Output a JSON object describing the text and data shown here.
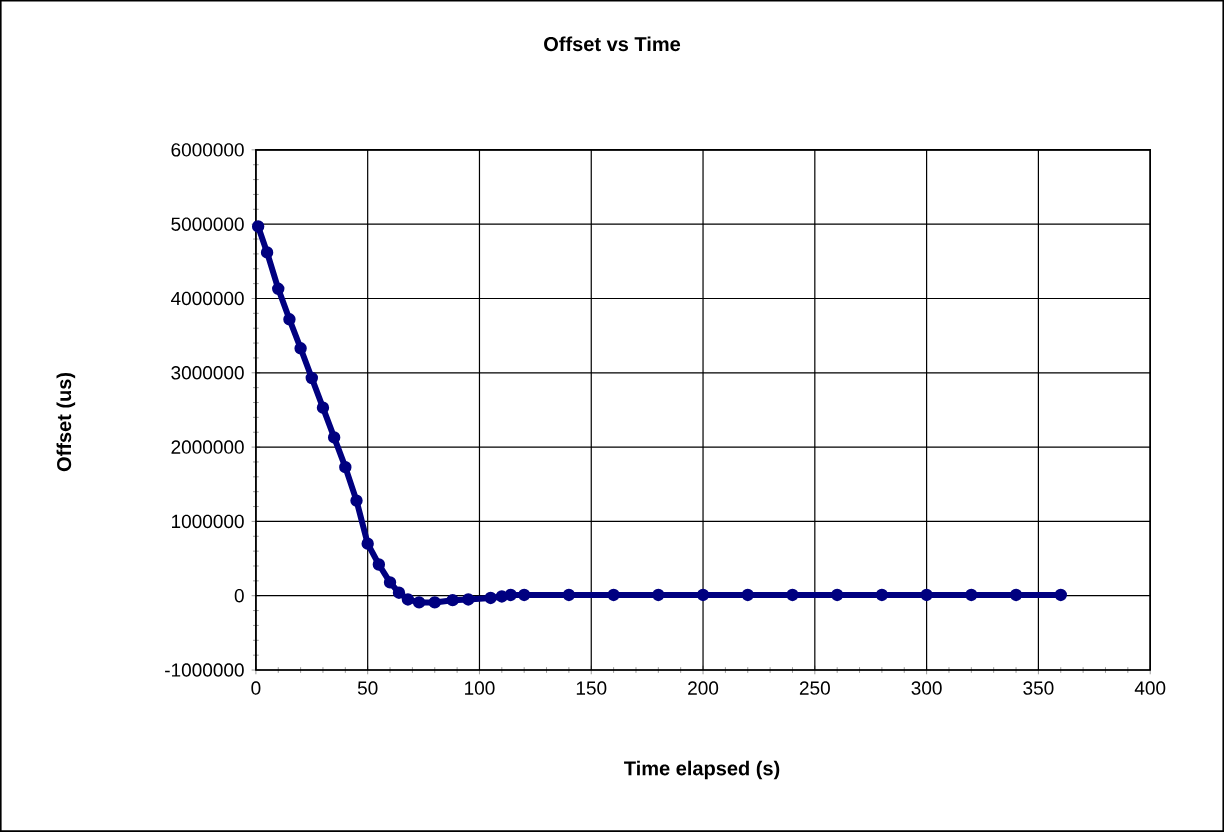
{
  "chart_data": {
    "type": "line",
    "title": "Offset vs Time",
    "xlabel": "Time elapsed (s)",
    "ylabel": "Offset (us)",
    "xlim": [
      0,
      400
    ],
    "xticks": [
      0,
      50,
      100,
      150,
      200,
      250,
      300,
      350,
      400
    ],
    "ylim": [
      -1000000,
      6000000
    ],
    "yticks": [
      -1000000,
      0,
      1000000,
      2000000,
      3000000,
      4000000,
      5000000,
      6000000
    ],
    "grid": true,
    "marker": "circle",
    "series": [
      {
        "color": "#000080",
        "x": [
          1,
          5,
          10,
          15,
          20,
          25,
          30,
          35,
          40,
          45,
          50,
          55,
          60,
          64,
          68,
          73,
          80,
          88,
          95,
          105,
          110,
          114,
          120,
          140,
          160,
          180,
          200,
          220,
          240,
          260,
          280,
          300,
          320,
          340,
          360
        ],
        "values": [
          4970000,
          4620000,
          4130000,
          3720000,
          3330000,
          2930000,
          2530000,
          2130000,
          1730000,
          1280000,
          700000,
          420000,
          180000,
          40000,
          -50000,
          -90000,
          -90000,
          -60000,
          -50000,
          -30000,
          -10000,
          10000,
          10000,
          10000,
          10000,
          10000,
          10000,
          10000,
          10000,
          10000,
          10000,
          10000,
          10000,
          10000,
          10000
        ]
      }
    ]
  }
}
